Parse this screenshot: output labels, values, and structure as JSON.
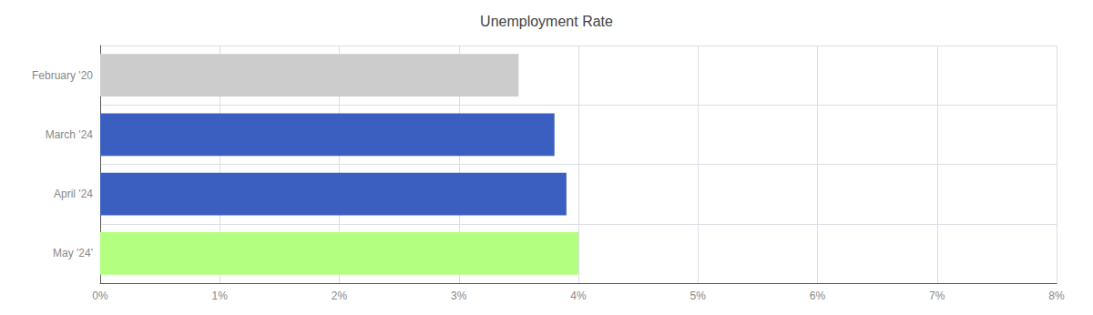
{
  "chart_data": {
    "type": "bar",
    "orientation": "horizontal",
    "title": "Unemployment Rate",
    "categories": [
      "February '20",
      "March '24",
      "April '24",
      "May '24'"
    ],
    "values": [
      3.5,
      3.8,
      3.9,
      4.0
    ],
    "colors": [
      "#cccccc",
      "#3b5fc0",
      "#3b5fc0",
      "#b3ff80"
    ],
    "xlim": [
      0,
      8
    ],
    "xticks": [
      {
        "value": 0,
        "label": "0%"
      },
      {
        "value": 1,
        "label": "1%"
      },
      {
        "value": 2,
        "label": "2%"
      },
      {
        "value": 3,
        "label": "3%"
      },
      {
        "value": 4,
        "label": "4%"
      },
      {
        "value": 5,
        "label": "5%"
      },
      {
        "value": 6,
        "label": "6%"
      },
      {
        "value": 7,
        "label": "7%"
      },
      {
        "value": 8,
        "label": "8%"
      }
    ],
    "grid": true
  }
}
